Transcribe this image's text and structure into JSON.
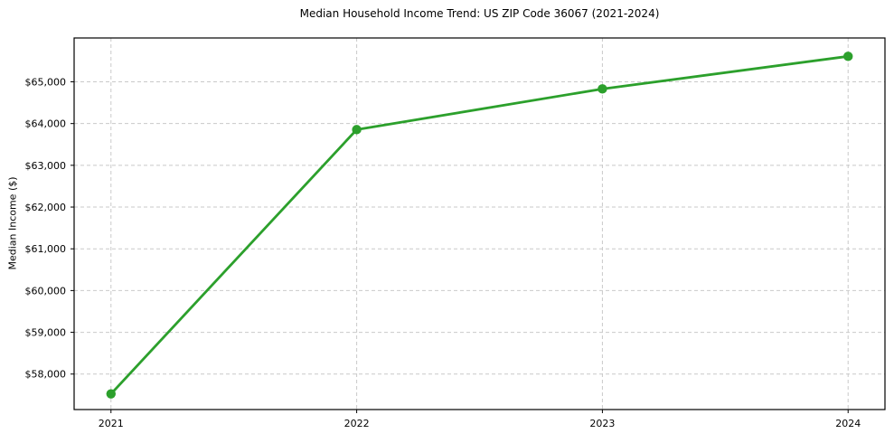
{
  "chart_data": {
    "type": "line",
    "title": "Median Household Income Trend: US ZIP Code 36067 (2021-2024)",
    "xlabel": "",
    "ylabel": "Median Income ($)",
    "x": [
      2021,
      2022,
      2023,
      2024
    ],
    "x_tick_labels": [
      "2021",
      "2022",
      "2023",
      "2024"
    ],
    "values": [
      57525,
      63855,
      64830,
      65610
    ],
    "y_ticks": [
      58000,
      59000,
      60000,
      61000,
      62000,
      63000,
      64000,
      65000
    ],
    "y_tick_labels": [
      "$58,000",
      "$59,000",
      "$60,000",
      "$61,000",
      "$62,000",
      "$63,000",
      "$64,000",
      "$65,000"
    ],
    "xlim": [
      2020.85,
      2024.15
    ],
    "ylim": [
      57150,
      66050
    ],
    "grid": true,
    "grid_style": "dashed",
    "legend": false,
    "marker": "circle",
    "colors": {
      "line": "#2ca02c",
      "marker": "#2ca02c",
      "grid": "#c9c9c9",
      "axis": "#000000",
      "text": "#000000",
      "background": "#ffffff"
    }
  }
}
